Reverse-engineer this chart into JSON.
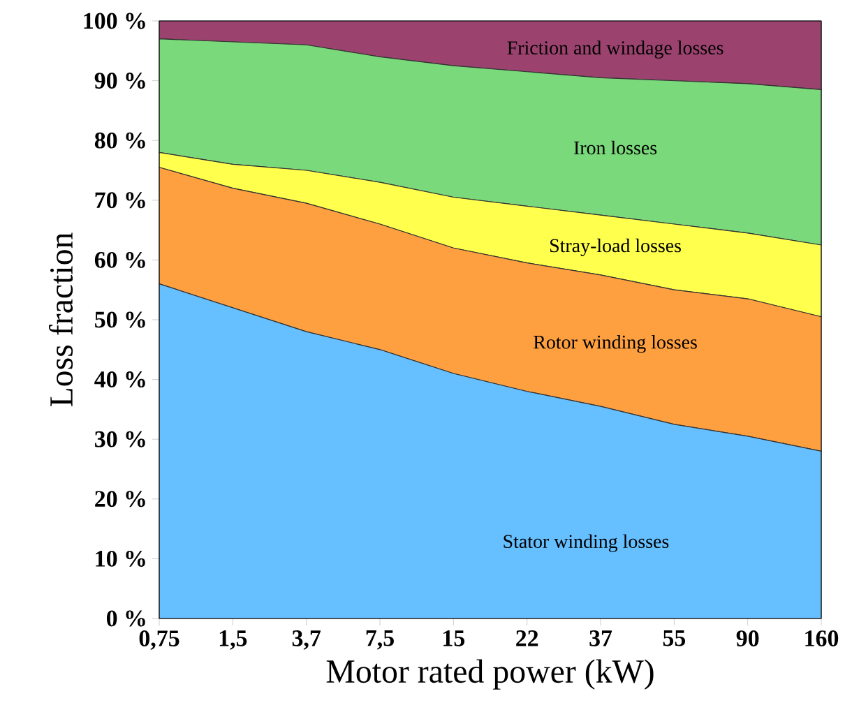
{
  "chart_data": {
    "type": "area",
    "stacked": true,
    "xlabel": "Motor rated power (kW)",
    "ylabel": "Loss fraction",
    "categories": [
      "0,75",
      "1,5",
      "3,7",
      "7,5",
      "15",
      "22",
      "37",
      "55",
      "90",
      "160"
    ],
    "ylim": [
      0,
      100
    ],
    "yticks": [
      {
        "value": 0,
        "label": "0 %"
      },
      {
        "value": 10,
        "label": "10 %"
      },
      {
        "value": 20,
        "label": "20 %"
      },
      {
        "value": 30,
        "label": "30 %"
      },
      {
        "value": 40,
        "label": "40 %"
      },
      {
        "value": 50,
        "label": "50 %"
      },
      {
        "value": 60,
        "label": "60 %"
      },
      {
        "value": 70,
        "label": "70 %"
      },
      {
        "value": 80,
        "label": "80 %"
      },
      {
        "value": 90,
        "label": "90 %"
      },
      {
        "value": 100,
        "label": "100 %"
      }
    ],
    "grid": false,
    "legend": false,
    "series": [
      {
        "name": "Stator winding losses",
        "color": "#66bfff",
        "values": [
          56,
          52,
          48,
          45,
          41,
          38,
          35.5,
          32.5,
          30.5,
          28
        ]
      },
      {
        "name": "Rotor winding losses",
        "color": "#ffa040",
        "values": [
          19.5,
          20,
          21.5,
          21,
          21,
          21.5,
          22,
          22.5,
          23,
          22.5
        ]
      },
      {
        "name": "Stray-load losses",
        "color": "#ffff4d",
        "values": [
          2.5,
          4,
          5.5,
          7,
          8.5,
          9.5,
          10,
          11,
          11,
          12
        ]
      },
      {
        "name": "Iron losses",
        "color": "#7ad97a",
        "values": [
          19,
          20.5,
          21,
          21,
          22,
          22.5,
          23,
          24,
          25,
          26
        ]
      },
      {
        "name": "Friction and windage losses",
        "color": "#9b426e",
        "values": [
          3,
          3.5,
          4,
          6,
          7.5,
          8.5,
          9.5,
          10,
          10.5,
          11.5
        ]
      }
    ]
  }
}
